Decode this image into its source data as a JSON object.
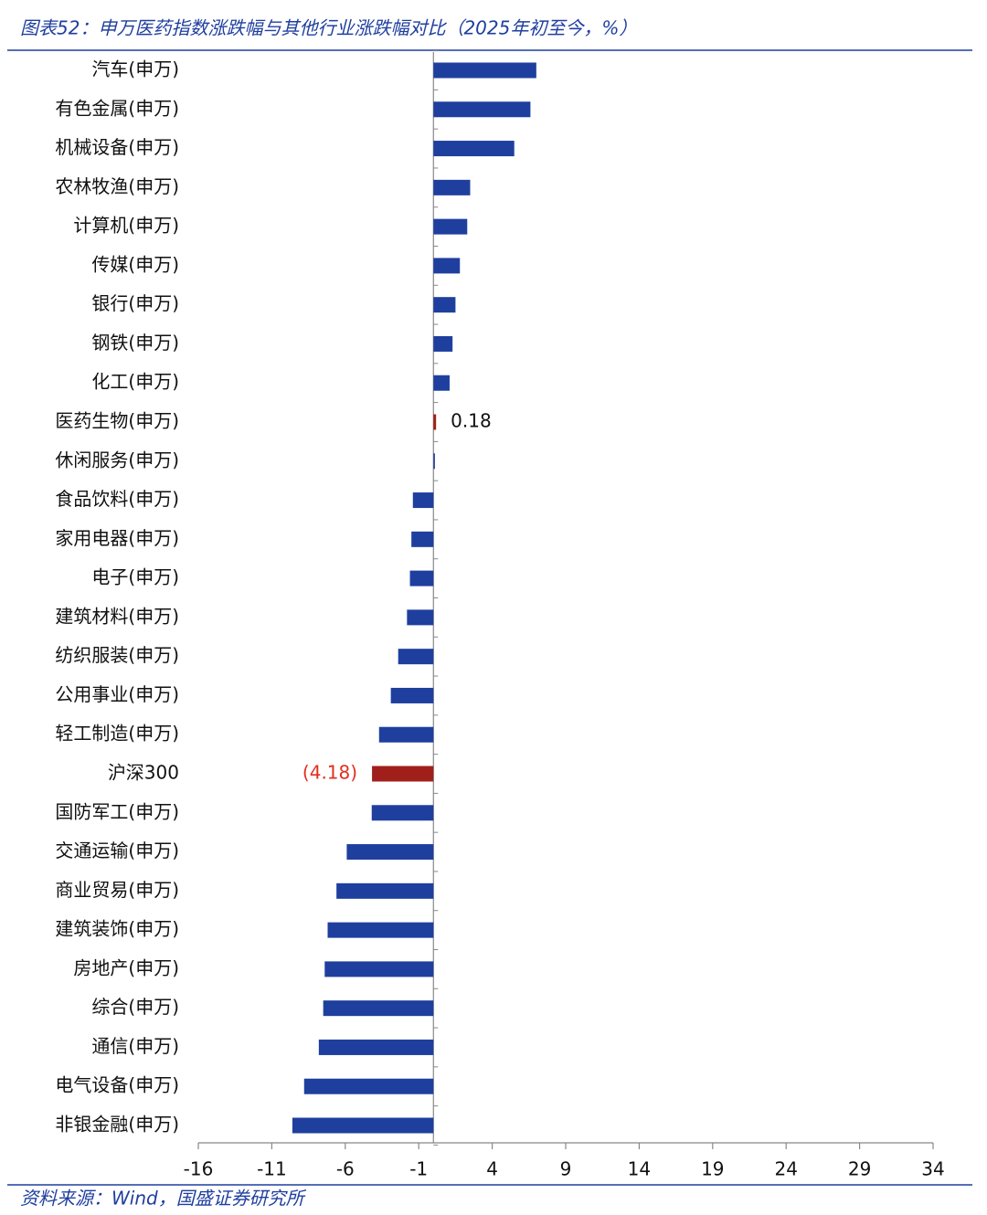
{
  "chart_data": {
    "type": "barh",
    "title": "图表52：申万医药指数涨跌幅与其他行业涨跌幅对比（2025年初至今，%）",
    "source": "资料来源：Wind，国盛证券研究所",
    "categories": [
      "汽车(申万)",
      "有色金属(申万)",
      "机械设备(申万)",
      "农林牧渔(申万)",
      "计算机(申万)",
      "传媒(申万)",
      "银行(申万)",
      "钢铁(申万)",
      "化工(申万)",
      "医药生物(申万)",
      "休闲服务(申万)",
      "食品饮料(申万)",
      "家用电器(申万)",
      "电子(申万)",
      "建筑材料(申万)",
      "纺织服装(申万)",
      "公用事业(申万)",
      "轻工制造(申万)",
      "沪深300",
      "国防军工(申万)",
      "交通运输(申万)",
      "商业贸易(申万)",
      "建筑装饰(申万)",
      "房地产(申万)",
      "综合(申万)",
      "通信(申万)",
      "电气设备(申万)",
      "非银金融(申万)"
    ],
    "values": [
      7.0,
      6.6,
      5.5,
      2.5,
      2.3,
      1.8,
      1.5,
      1.3,
      1.1,
      0.18,
      0.1,
      -1.4,
      -1.5,
      -1.6,
      -1.8,
      -2.4,
      -2.9,
      -3.7,
      -4.18,
      -4.2,
      -5.9,
      -6.6,
      -7.2,
      -7.4,
      -7.5,
      -7.8,
      -8.8,
      -9.6
    ],
    "value_labels": [
      null,
      null,
      null,
      null,
      null,
      null,
      null,
      null,
      null,
      "0.18",
      null,
      null,
      null,
      null,
      null,
      null,
      null,
      null,
      "(4.18)",
      null,
      null,
      null,
      null,
      null,
      null,
      null,
      null,
      null
    ],
    "colors": [
      "#1f3f9f",
      "#1f3f9f",
      "#1f3f9f",
      "#1f3f9f",
      "#1f3f9f",
      "#1f3f9f",
      "#1f3f9f",
      "#1f3f9f",
      "#1f3f9f",
      "#a11f1a",
      "#1f3f9f",
      "#1f3f9f",
      "#1f3f9f",
      "#1f3f9f",
      "#1f3f9f",
      "#1f3f9f",
      "#1f3f9f",
      "#1f3f9f",
      "#a11f1a",
      "#1f3f9f",
      "#1f3f9f",
      "#1f3f9f",
      "#1f3f9f",
      "#1f3f9f",
      "#1f3f9f",
      "#1f3f9f",
      "#1f3f9f",
      "#1f3f9f"
    ],
    "xlim": [
      -16,
      34
    ],
    "xticks": [
      -16,
      -11,
      -6,
      -1,
      4,
      9,
      14,
      19,
      24,
      29,
      34
    ]
  }
}
